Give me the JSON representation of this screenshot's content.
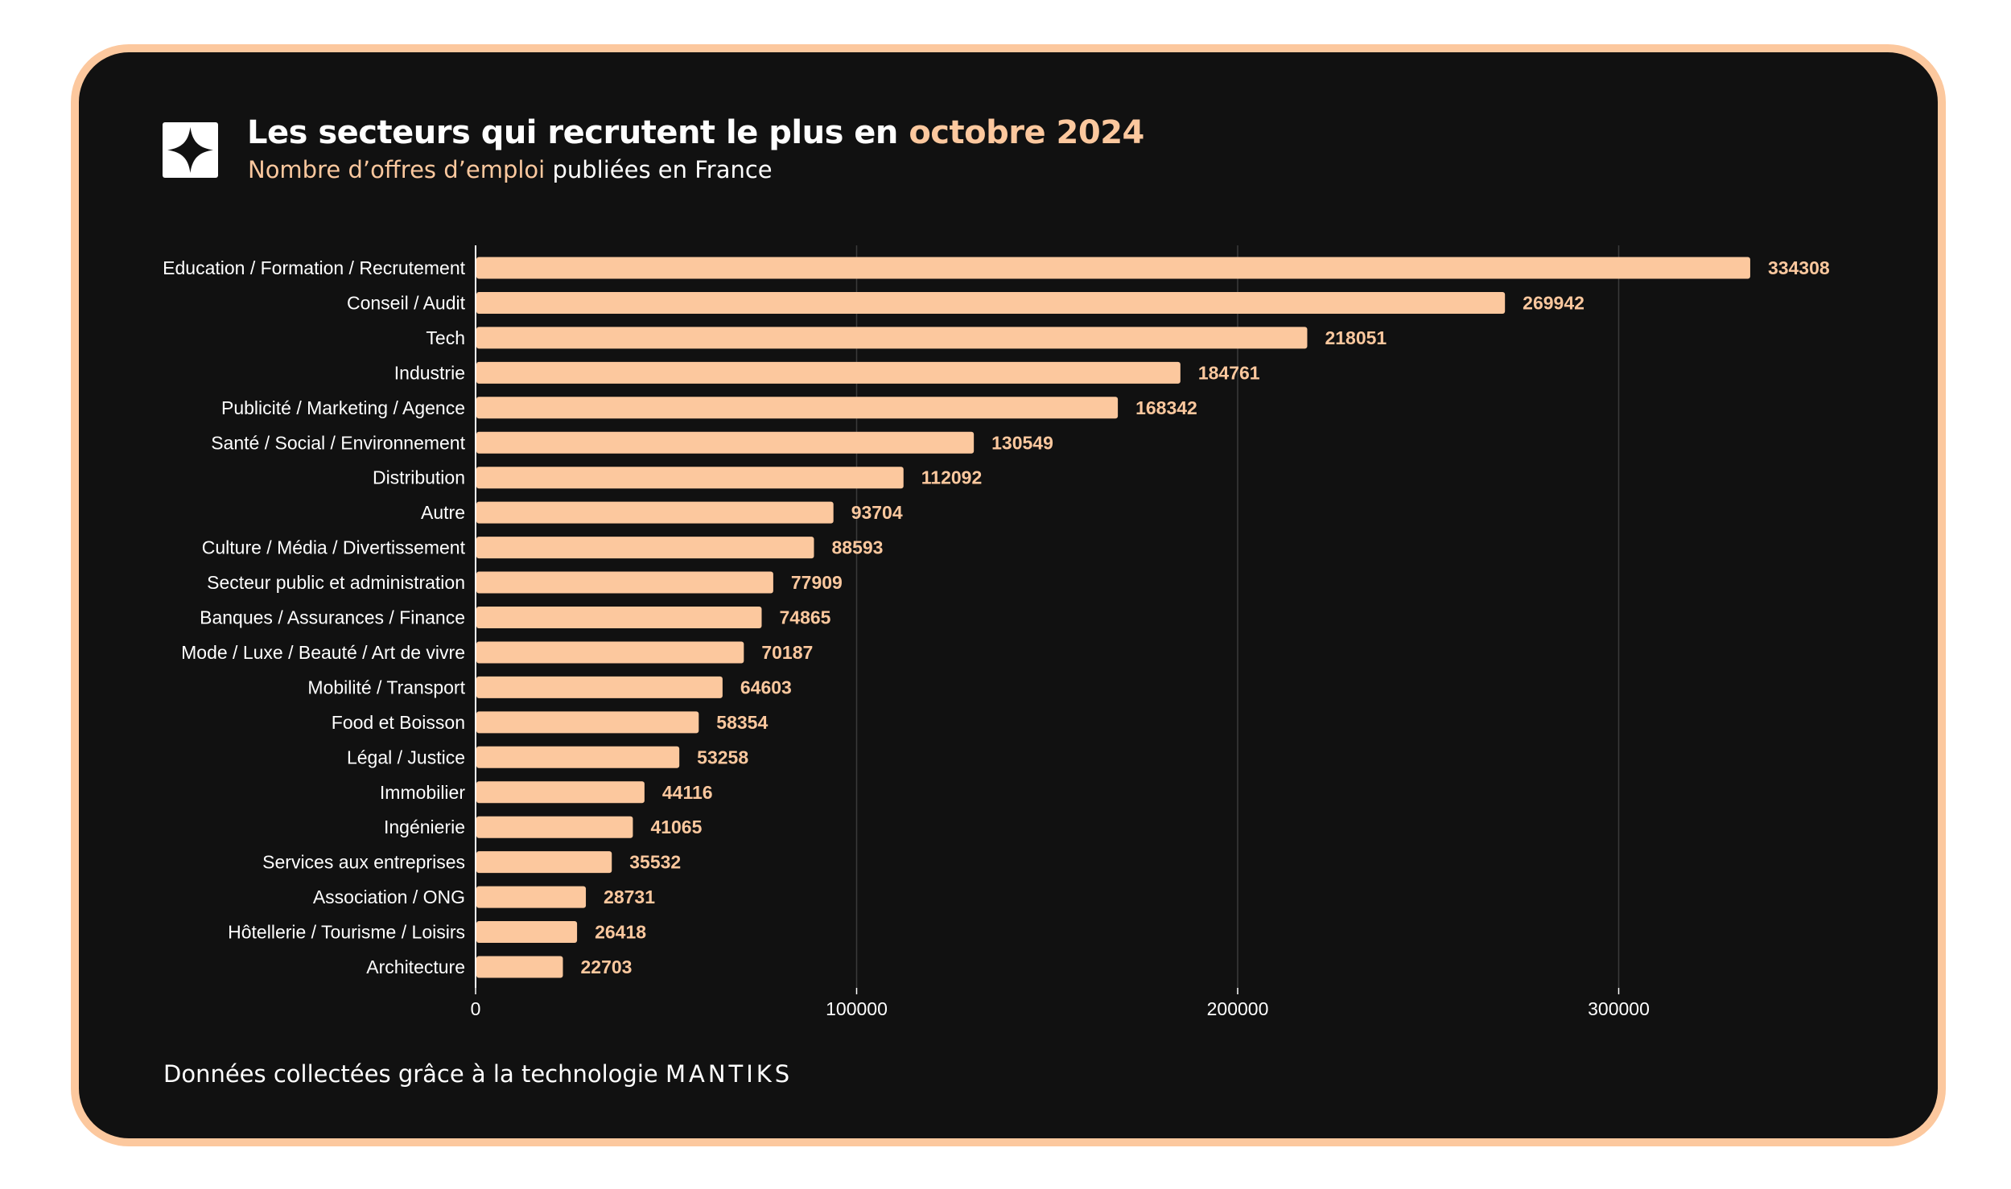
{
  "header": {
    "title_part1": "Les secteurs qui recrutent le plus en ",
    "title_part2": "octobre 2024",
    "subtitle_part1": "Nombre d’offres d’emploi",
    "subtitle_part2": " publiées en France"
  },
  "footer": {
    "text": "Données collectées grâce à la technologie ",
    "brand": "MANTIKS"
  },
  "colors": {
    "bar": "#fcc89e",
    "background": "#111111",
    "text": "#ffffff",
    "border": "#fcc89e"
  },
  "logo_icon": "four-point-star-icon",
  "chart_data": {
    "type": "bar",
    "orientation": "horizontal",
    "title": "",
    "xlabel": "",
    "ylabel": "",
    "xlim": [
      0,
      360000
    ],
    "xticks": [
      0,
      100000,
      200000,
      300000
    ],
    "grid": "vertical",
    "categories": [
      "Education / Formation / Recrutement",
      "Conseil / Audit",
      "Tech",
      "Industrie",
      "Publicité / Marketing / Agence",
      "Santé / Social / Environnement",
      "Distribution",
      "Autre",
      "Culture / Média / Divertissement",
      "Secteur public et administration",
      "Banques / Assurances / Finance",
      "Mode / Luxe / Beauté / Art de vivre",
      "Mobilité / Transport",
      "Food et Boisson",
      "Légal / Justice",
      "Immobilier",
      "Ingénierie",
      "Services aux entreprises",
      "Association / ONG",
      "Hôtellerie / Tourisme / Loisirs",
      "Architecture"
    ],
    "values": [
      334308,
      269942,
      218051,
      184761,
      168342,
      130549,
      112092,
      93704,
      88593,
      77909,
      74865,
      70187,
      64603,
      58354,
      53258,
      44116,
      41065,
      35532,
      28731,
      26418,
      22703
    ]
  }
}
